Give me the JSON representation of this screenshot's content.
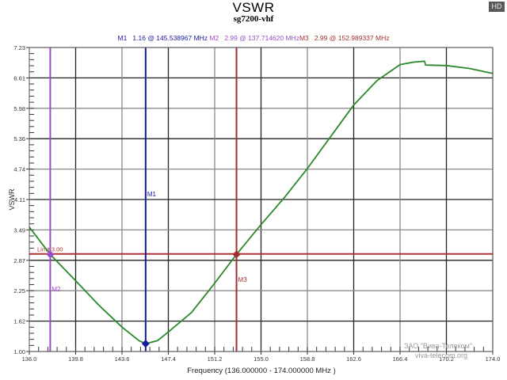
{
  "header": {
    "title": "VSWR",
    "subtitle": "sg7200-vhf",
    "badge": "HD"
  },
  "markers": {
    "m1": "M1   1.16 @ 145.538967 MHz",
    "m2": "M2   2.99 @ 137.714620 MHz",
    "m3": "M3   2.99 @ 152.989337 MHz",
    "m1_label": "M1",
    "m2_label": "M2",
    "m3_label": "M3",
    "limit_label": "Limit 3.00",
    "colors": {
      "m1": "#1a1aa0",
      "m2": "#9a4dc8",
      "m3": "#a03030",
      "limit": "#b03030",
      "trace": "#2a8a2a"
    }
  },
  "axes": {
    "xlabel": "Frequency (136.000000 - 174.000000 MHz )",
    "ylabel": "VSWR",
    "xticks": [
      "136.0",
      "139.8",
      "143.6",
      "147.4",
      "151.2",
      "155.0",
      "158.8",
      "162.6",
      "166.4",
      "170.2",
      "174.0"
    ],
    "yticks": [
      "7.23",
      "6.61",
      "5.98",
      "5.36",
      "4.74",
      "4.11",
      "3.49",
      "2.87",
      "2.25",
      "1.62",
      "1.00"
    ]
  },
  "watermark": {
    "line1": "ЗАО \"Вива-Телеком\"",
    "line2": "viva-telecom.org"
  },
  "chart_data": {
    "type": "line",
    "title": "VSWR",
    "subtitle": "sg7200-vhf",
    "xlabel": "Frequency (136.000000 - 174.000000 MHz )",
    "ylabel": "VSWR",
    "xlim": [
      136.0,
      174.0
    ],
    "ylim": [
      1.0,
      7.23
    ],
    "grid": true,
    "series": [
      {
        "name": "VSWR",
        "x": [
          136.0,
          137.71,
          139.8,
          141.7,
          143.6,
          145.0,
          145.54,
          146.5,
          147.4,
          149.3,
          151.2,
          152.99,
          155.0,
          156.9,
          158.8,
          160.7,
          162.6,
          164.5,
          166.4,
          167.5,
          168.4,
          168.5,
          170.2,
          172.1,
          174.0
        ],
        "y": [
          3.55,
          2.99,
          2.45,
          1.95,
          1.5,
          1.22,
          1.16,
          1.22,
          1.4,
          1.8,
          2.4,
          2.99,
          3.6,
          4.15,
          4.75,
          5.4,
          6.05,
          6.55,
          6.88,
          6.93,
          6.95,
          6.87,
          6.86,
          6.8,
          6.7
        ]
      }
    ],
    "markers": [
      {
        "name": "M1",
        "x": 145.538967,
        "y": 1.16
      },
      {
        "name": "M2",
        "x": 137.71462,
        "y": 2.99
      },
      {
        "name": "M3",
        "x": 152.989337,
        "y": 2.99
      }
    ],
    "limit_line": {
      "label": "Limit 3.00",
      "y": 3.0
    }
  }
}
